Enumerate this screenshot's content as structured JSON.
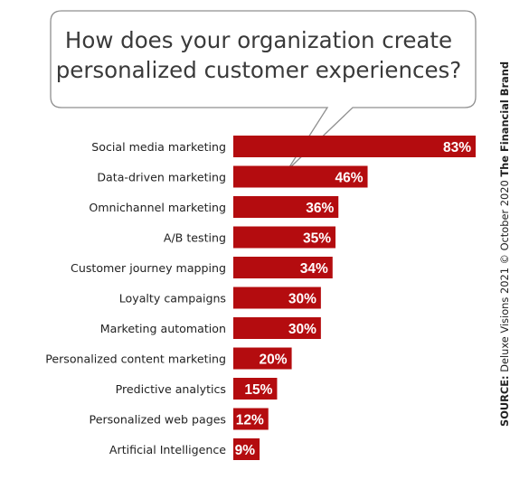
{
  "title": "How does your organization create personalized customer experiences?",
  "source": {
    "label": "SOURCE:",
    "text": "Deluxe Visions 2021 © October 2020",
    "brand": "The Financial Brand"
  },
  "colors": {
    "bar": "#b40c0f",
    "bar_text": "#ffffff",
    "label_text": "#222222",
    "bubble_stroke": "#8f8f8f"
  },
  "chart_data": {
    "type": "bar",
    "orientation": "horizontal",
    "title": "How does your organization create personalized customer experiences?",
    "categories": [
      "Social media marketing",
      "Data-driven marketing",
      "Omnichannel marketing",
      "A/B testing",
      "Customer journey mapping",
      "Loyalty campaigns",
      "Marketing automation",
      "Personalized content marketing",
      "Predictive analytics",
      "Personalized web pages",
      "Artificial Intelligence"
    ],
    "values": [
      83,
      46,
      36,
      35,
      34,
      30,
      30,
      20,
      15,
      12,
      9
    ],
    "value_labels": [
      "83%",
      "46%",
      "36%",
      "35%",
      "34%",
      "30%",
      "30%",
      "20%",
      "15%",
      "12%",
      "9%"
    ],
    "unit": "%",
    "xlim": [
      0,
      83
    ],
    "grid": false,
    "legend": "none"
  }
}
